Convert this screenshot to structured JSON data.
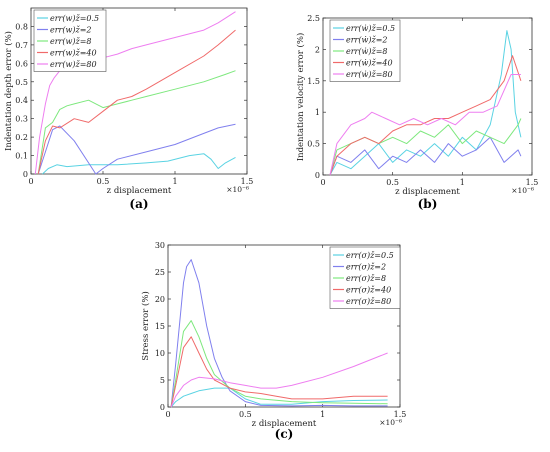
{
  "chart_data": [
    {
      "type": "line",
      "panel_label": "(a)",
      "xlabel": "z displacement",
      "ylabel": "Indentation depth error (%)",
      "x_exponent": "×10⁻⁶",
      "xlim": [
        0,
        1.5
      ],
      "ylim": [
        0,
        0.9
      ],
      "xticks": [
        "0",
        "0.5",
        "1",
        "1.5"
      ],
      "yticks": [
        "0",
        "0.1",
        "0.2",
        "0.3",
        "0.4",
        "0.5",
        "0.6",
        "0.7",
        "0.8"
      ],
      "legend_position": "top-left",
      "series": [
        {
          "name": "err(w)ž=0.5",
          "color": "#5ad3e3",
          "x": [
            0.08,
            0.12,
            0.18,
            0.25,
            0.4,
            0.6,
            0.8,
            0.95,
            1.1,
            1.2,
            1.25,
            1.3,
            1.35,
            1.42
          ],
          "y": [
            0.0,
            0.03,
            0.05,
            0.04,
            0.05,
            0.05,
            0.06,
            0.07,
            0.1,
            0.11,
            0.08,
            0.03,
            0.06,
            0.09
          ]
        },
        {
          "name": "err(w)ž=2",
          "color": "#8080ee",
          "x": [
            0.05,
            0.1,
            0.15,
            0.2,
            0.3,
            0.4,
            0.45,
            0.5,
            0.6,
            0.8,
            1.0,
            1.2,
            1.3,
            1.42
          ],
          "y": [
            0.0,
            0.12,
            0.24,
            0.26,
            0.18,
            0.06,
            0.0,
            0.03,
            0.08,
            0.12,
            0.16,
            0.22,
            0.25,
            0.27
          ]
        },
        {
          "name": "err(w)ž=8",
          "color": "#7ee87e",
          "x": [
            0.05,
            0.1,
            0.15,
            0.2,
            0.25,
            0.3,
            0.4,
            0.5,
            0.6,
            0.7,
            0.8,
            1.0,
            1.2,
            1.35,
            1.42
          ],
          "y": [
            0.0,
            0.25,
            0.28,
            0.35,
            0.37,
            0.38,
            0.4,
            0.36,
            0.38,
            0.4,
            0.42,
            0.46,
            0.5,
            0.54,
            0.56
          ]
        },
        {
          "name": "err(w)ž=40",
          "color": "#f06a6a",
          "x": [
            0.05,
            0.1,
            0.15,
            0.2,
            0.3,
            0.4,
            0.5,
            0.6,
            0.7,
            0.8,
            1.0,
            1.2,
            1.3,
            1.42
          ],
          "y": [
            0.0,
            0.18,
            0.26,
            0.25,
            0.3,
            0.28,
            0.34,
            0.4,
            0.42,
            0.46,
            0.55,
            0.64,
            0.7,
            0.78
          ]
        },
        {
          "name": "err(w)ž=80",
          "color": "#ee7ef0",
          "x": [
            0.03,
            0.06,
            0.1,
            0.13,
            0.16,
            0.2,
            0.3,
            0.4,
            0.5,
            0.6,
            0.7,
            0.8,
            1.0,
            1.2,
            1.3,
            1.42
          ],
          "y": [
            0.0,
            0.2,
            0.38,
            0.48,
            0.52,
            0.56,
            0.6,
            0.63,
            0.63,
            0.65,
            0.68,
            0.7,
            0.74,
            0.78,
            0.82,
            0.88
          ]
        }
      ]
    },
    {
      "type": "line",
      "panel_label": "(b)",
      "xlabel": "z displacement",
      "ylabel": "Indentation velocity error (%)",
      "x_exponent": "×10⁻⁶",
      "xlim": [
        0,
        1.5
      ],
      "ylim": [
        0,
        2.5
      ],
      "xticks": [
        "0",
        "0.5",
        "1",
        "1.5"
      ],
      "yticks": [
        "0",
        "0.5",
        "1",
        "1.5",
        "2",
        "2.5"
      ],
      "legend_position": "top-right",
      "series": [
        {
          "name": "err(ẇ)ž=0.5",
          "color": "#5ad3e3",
          "x": [
            0.05,
            0.1,
            0.2,
            0.3,
            0.4,
            0.5,
            0.6,
            0.7,
            0.8,
            0.9,
            1.0,
            1.1,
            1.2,
            1.28,
            1.32,
            1.35,
            1.38,
            1.42
          ],
          "y": [
            0.0,
            0.2,
            0.1,
            0.3,
            0.5,
            0.2,
            0.4,
            0.3,
            0.5,
            0.3,
            0.6,
            0.4,
            0.8,
            1.6,
            2.3,
            2.0,
            1.0,
            0.6
          ]
        },
        {
          "name": "err(ẇ)ž=2",
          "color": "#8080ee",
          "x": [
            0.05,
            0.1,
            0.2,
            0.3,
            0.4,
            0.5,
            0.6,
            0.7,
            0.8,
            0.9,
            1.0,
            1.1,
            1.2,
            1.3,
            1.4,
            1.42
          ],
          "y": [
            0.0,
            0.3,
            0.2,
            0.4,
            0.1,
            0.3,
            0.2,
            0.4,
            0.2,
            0.5,
            0.3,
            0.4,
            0.6,
            0.2,
            0.4,
            0.3
          ]
        },
        {
          "name": "err(ẇ)ž=8",
          "color": "#7ee87e",
          "x": [
            0.05,
            0.1,
            0.2,
            0.3,
            0.4,
            0.5,
            0.6,
            0.7,
            0.8,
            0.9,
            1.0,
            1.1,
            1.2,
            1.3,
            1.4,
            1.42
          ],
          "y": [
            0.0,
            0.4,
            0.5,
            0.6,
            0.5,
            0.6,
            0.5,
            0.7,
            0.6,
            0.8,
            0.5,
            0.7,
            0.6,
            0.5,
            0.8,
            0.9
          ]
        },
        {
          "name": "err(ẇ)ž=40",
          "color": "#f06a6a",
          "x": [
            0.05,
            0.1,
            0.2,
            0.3,
            0.4,
            0.5,
            0.6,
            0.7,
            0.8,
            0.9,
            1.0,
            1.1,
            1.2,
            1.3,
            1.36,
            1.42
          ],
          "y": [
            0.0,
            0.3,
            0.5,
            0.6,
            0.5,
            0.7,
            0.8,
            0.8,
            0.9,
            0.9,
            1.0,
            1.1,
            1.2,
            1.5,
            1.9,
            1.5
          ]
        },
        {
          "name": "err(ẇ)ž=80",
          "color": "#ee7ef0",
          "x": [
            0.05,
            0.1,
            0.2,
            0.3,
            0.35,
            0.45,
            0.55,
            0.65,
            0.75,
            0.85,
            0.95,
            1.05,
            1.15,
            1.25,
            1.35,
            1.42
          ],
          "y": [
            0.0,
            0.5,
            0.8,
            0.9,
            1.0,
            0.9,
            0.8,
            0.9,
            0.8,
            0.9,
            0.8,
            1.0,
            1.0,
            1.1,
            1.6,
            1.6
          ]
        }
      ]
    },
    {
      "type": "line",
      "panel_label": "(c)",
      "xlabel": "z displacement",
      "ylabel": "Stress error (%)",
      "x_exponent": "×10⁻⁶",
      "xlim": [
        0,
        1.5
      ],
      "ylim": [
        0,
        30
      ],
      "xticks": [
        "0",
        "0.5",
        "1",
        "1.5"
      ],
      "yticks": [
        "0",
        "5",
        "10",
        "15",
        "20",
        "25",
        "30"
      ],
      "legend_position": "top-right",
      "series": [
        {
          "name": "err(σ)ž=0.5",
          "color": "#5ad3e3",
          "x": [
            0.02,
            0.05,
            0.1,
            0.15,
            0.2,
            0.3,
            0.4,
            0.5,
            0.6,
            0.8,
            1.0,
            1.2,
            1.42
          ],
          "y": [
            0.0,
            1.0,
            2.0,
            2.5,
            3.0,
            3.5,
            3.5,
            1.5,
            0.5,
            0.5,
            1.0,
            1.2,
            1.3
          ]
        },
        {
          "name": "err(σ)ž=2",
          "color": "#8080ee",
          "x": [
            0.02,
            0.05,
            0.08,
            0.1,
            0.12,
            0.15,
            0.2,
            0.25,
            0.3,
            0.35,
            0.4,
            0.5,
            0.6,
            0.8,
            1.0,
            1.2,
            1.42
          ],
          "y": [
            0.0,
            8.0,
            17.0,
            23.0,
            26.0,
            27.3,
            23.0,
            15.0,
            9.0,
            5.5,
            3.0,
            1.0,
            0.3,
            0.2,
            0.3,
            0.2,
            0.2
          ]
        },
        {
          "name": "err(σ)ž=8",
          "color": "#7ee87e",
          "x": [
            0.02,
            0.05,
            0.1,
            0.15,
            0.2,
            0.25,
            0.3,
            0.4,
            0.5,
            0.6,
            0.8,
            1.0,
            1.2,
            1.42
          ],
          "y": [
            0.0,
            5.0,
            14.0,
            16.0,
            13.0,
            9.0,
            6.0,
            3.5,
            2.0,
            1.5,
            1.0,
            0.8,
            0.7,
            0.6
          ]
        },
        {
          "name": "err(σ)ž=40",
          "color": "#f06a6a",
          "x": [
            0.02,
            0.05,
            0.1,
            0.15,
            0.2,
            0.25,
            0.3,
            0.4,
            0.5,
            0.6,
            0.7,
            0.8,
            1.0,
            1.2,
            1.42
          ],
          "y": [
            0.0,
            4.0,
            11.0,
            13.0,
            10.0,
            7.0,
            5.0,
            3.5,
            2.8,
            2.5,
            2.0,
            1.5,
            1.5,
            2.0,
            2.0
          ]
        },
        {
          "name": "err(σ)ž=80",
          "color": "#ee7ef0",
          "x": [
            0.02,
            0.05,
            0.1,
            0.15,
            0.2,
            0.3,
            0.4,
            0.5,
            0.6,
            0.7,
            0.8,
            1.0,
            1.2,
            1.42
          ],
          "y": [
            0.0,
            2.0,
            4.0,
            5.0,
            5.5,
            5.2,
            4.5,
            4.0,
            3.5,
            3.5,
            4.0,
            5.5,
            7.5,
            10.0
          ]
        }
      ]
    }
  ]
}
